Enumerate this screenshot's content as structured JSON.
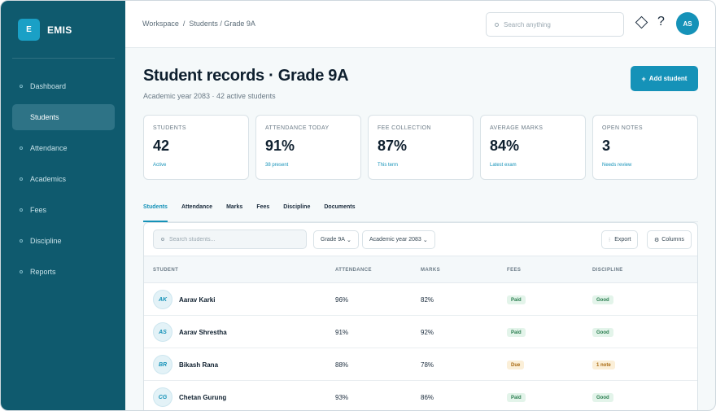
{
  "brand": {
    "logo_letter": "E",
    "name": "EMIS"
  },
  "sidebar": {
    "items": [
      {
        "label": "Dashboard",
        "active": false
      },
      {
        "label": "Students",
        "active": true
      },
      {
        "label": "Attendance",
        "active": false
      },
      {
        "label": "Academics",
        "active": false
      },
      {
        "label": "Fees",
        "active": false
      },
      {
        "label": "Discipline",
        "active": false
      },
      {
        "label": "Reports",
        "active": false
      }
    ]
  },
  "header": {
    "breadcrumb": [
      "Workspace",
      "Students / Grade 9A"
    ],
    "breadcrumb_sep": "/",
    "search_placeholder": "Search anything",
    "help_glyph": "?",
    "avatar_initials": "AS"
  },
  "page": {
    "title": "Student records · Grade 9A",
    "subtitle": "Academic year 2083 · 42 active students",
    "add_button": "Add student",
    "add_button_icon": "+"
  },
  "stats": [
    {
      "label": "STUDENTS",
      "value": "42",
      "note": "Active"
    },
    {
      "label": "ATTENDANCE TODAY",
      "value": "91%",
      "note": "38 present"
    },
    {
      "label": "FEE COLLECTION",
      "value": "87%",
      "note": "This term"
    },
    {
      "label": "AVERAGE MARKS",
      "value": "84%",
      "note": "Latest exam"
    },
    {
      "label": "OPEN NOTES",
      "value": "3",
      "note": "Needs review"
    }
  ],
  "tabs": [
    {
      "label": "Students",
      "active": true
    },
    {
      "label": "Attendance",
      "active": false
    },
    {
      "label": "Marks",
      "active": false
    },
    {
      "label": "Fees",
      "active": false
    },
    {
      "label": "Discipline",
      "active": false
    },
    {
      "label": "Documents",
      "active": false
    }
  ],
  "table": {
    "search_placeholder": "Search students...",
    "filter_class": "Grade 9A",
    "filter_year": "Academic year 2083",
    "export_label": "Export",
    "columns_label": "Columns",
    "headers": [
      "STUDENT",
      "ATTENDANCE",
      "MARKS",
      "FEES",
      "DISCIPLINE"
    ],
    "rows": [
      {
        "initials": "AK",
        "name": "Aarav Karki",
        "attendance": "96%",
        "marks": "82%",
        "fees": "Paid",
        "fees_status": "green",
        "discipline": "Good",
        "discipline_status": "green"
      },
      {
        "initials": "AS",
        "name": "Aarav Shrestha",
        "attendance": "91%",
        "marks": "92%",
        "fees": "Paid",
        "fees_status": "green",
        "discipline": "Good",
        "discipline_status": "green"
      },
      {
        "initials": "BR",
        "name": "Bikash Rana",
        "attendance": "88%",
        "marks": "78%",
        "fees": "Due",
        "fees_status": "amber",
        "discipline": "1 note",
        "discipline_status": "amber"
      },
      {
        "initials": "CG",
        "name": "Chetan Gurung",
        "attendance": "93%",
        "marks": "86%",
        "fees": "Paid",
        "fees_status": "green",
        "discipline": "Good",
        "discipline_status": "green"
      }
    ]
  },
  "colors": {
    "sidebar": "#0f5a6e",
    "accent": "#1592b8",
    "paid": "#2a7d4f",
    "due": "#a86a12"
  }
}
